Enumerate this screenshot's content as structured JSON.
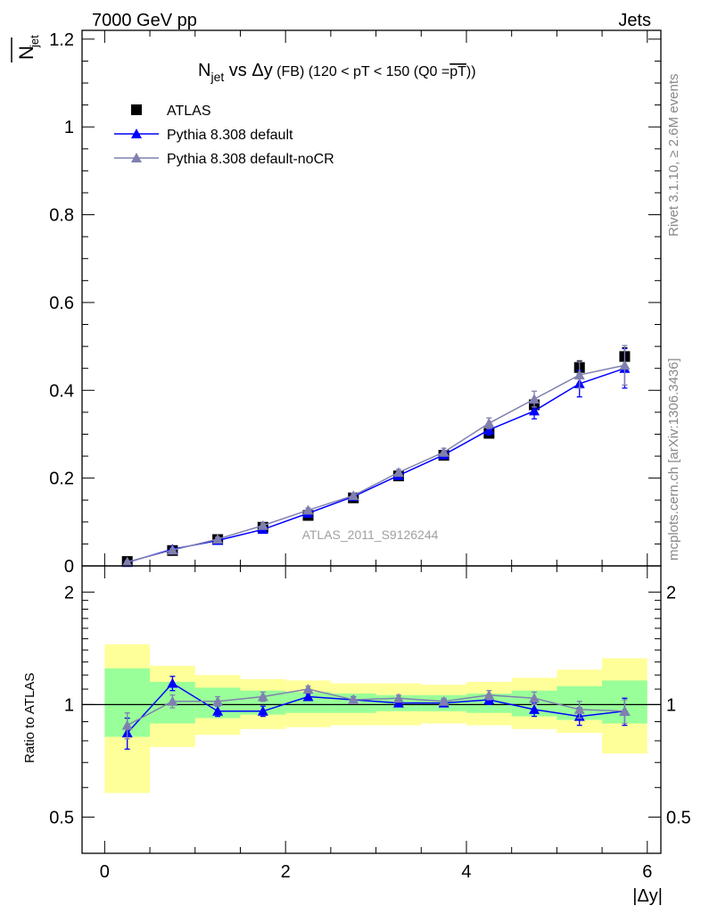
{
  "header": {
    "left": "7000 GeV pp",
    "right": "Jets"
  },
  "side_labels": {
    "rivet": "Rivet 3.1.10, ≥ 2.6M events",
    "mcplots": "mcplots.cern.ch [arXiv:1306.3436]"
  },
  "watermark": "ATLAS_2011_S9126244",
  "chart_data": [
    {
      "type": "scatter",
      "title_parts": {
        "n": "N",
        "jet_sub": "jet",
        "vs": " vs Δy",
        "fb": " (FB)",
        "range": " (120 < pT < 150 (Q0 =",
        "pt_bar": "pT",
        "close": "))"
      },
      "ylabel_main": "N",
      "ylabel_sub": "jet",
      "ylim": [
        0,
        1.22
      ],
      "yticks": [
        "0",
        "0.2",
        "0.4",
        "0.6",
        "0.8",
        "1",
        "1.2"
      ],
      "ytick_values": [
        0,
        0.2,
        0.4,
        0.6,
        0.8,
        1.0,
        1.2
      ],
      "xlim": [
        -0.25,
        6.15
      ],
      "x": [
        0.25,
        0.75,
        1.25,
        1.75,
        2.25,
        2.75,
        3.25,
        3.75,
        4.25,
        4.75,
        5.25,
        5.75
      ],
      "series": [
        {
          "name": "ATLAS",
          "color": "#000000",
          "marker": "square",
          "values": [
            0.01,
            0.035,
            0.06,
            0.088,
            0.115,
            0.155,
            0.205,
            0.252,
            0.302,
            0.367,
            0.452,
            0.477
          ],
          "errors": [
            0.003,
            0.003,
            0.004,
            0.005,
            0.006,
            0.007,
            0.008,
            0.009,
            0.01,
            0.012,
            0.015,
            0.02
          ]
        },
        {
          "name": "Pythia 8.308 default",
          "color": "#0000ff",
          "marker": "triangle",
          "values": [
            0.008,
            0.038,
            0.058,
            0.083,
            0.12,
            0.158,
            0.206,
            0.253,
            0.31,
            0.353,
            0.415,
            0.45
          ],
          "errors": [
            0.002,
            0.003,
            0.004,
            0.005,
            0.005,
            0.006,
            0.007,
            0.009,
            0.012,
            0.018,
            0.03,
            0.045
          ]
        },
        {
          "name": "Pythia 8.308 default-noCR",
          "color": "#8080b0",
          "marker": "triangle",
          "values": [
            0.009,
            0.036,
            0.061,
            0.092,
            0.127,
            0.16,
            0.213,
            0.259,
            0.325,
            0.38,
            0.435,
            0.457
          ],
          "errors": [
            0.002,
            0.003,
            0.004,
            0.005,
            0.005,
            0.006,
            0.007,
            0.009,
            0.012,
            0.018,
            0.03,
            0.045
          ]
        }
      ]
    },
    {
      "type": "scatter",
      "ylabel": "Ratio to ATLAS",
      "xlabel": "|Δy|",
      "ylim": [
        0.4,
        2.35
      ],
      "yscale": "log",
      "yticks": [
        "0.5",
        "1",
        "2"
      ],
      "ytick_values": [
        0.5,
        1,
        2
      ],
      "xticks": [
        "0",
        "2",
        "4",
        "6"
      ],
      "xtick_values": [
        0,
        2,
        4,
        6
      ],
      "bins": [
        [
          0,
          0.5
        ],
        [
          0.5,
          1
        ],
        [
          1,
          1.5
        ],
        [
          1.5,
          2
        ],
        [
          2,
          2.5
        ],
        [
          2.5,
          3
        ],
        [
          3,
          3.5
        ],
        [
          3.5,
          4
        ],
        [
          4,
          4.5
        ],
        [
          4.5,
          5
        ],
        [
          5,
          5.5
        ],
        [
          5.5,
          6
        ]
      ],
      "band_yellow": [
        [
          0.58,
          1.45
        ],
        [
          0.77,
          1.27
        ],
        [
          0.83,
          1.2
        ],
        [
          0.86,
          1.17
        ],
        [
          0.87,
          1.16
        ],
        [
          0.88,
          1.14
        ],
        [
          0.88,
          1.14
        ],
        [
          0.89,
          1.13
        ],
        [
          0.88,
          1.15
        ],
        [
          0.86,
          1.18
        ],
        [
          0.84,
          1.24
        ],
        [
          0.74,
          1.33
        ]
      ],
      "band_green": [
        [
          0.82,
          1.25
        ],
        [
          0.89,
          1.15
        ],
        [
          0.92,
          1.11
        ],
        [
          0.94,
          1.09
        ],
        [
          0.95,
          1.08
        ],
        [
          0.95,
          1.07
        ],
        [
          0.96,
          1.06
        ],
        [
          0.96,
          1.06
        ],
        [
          0.95,
          1.07
        ],
        [
          0.93,
          1.09
        ],
        [
          0.91,
          1.12
        ],
        [
          0.89,
          1.16
        ]
      ],
      "x": [
        0.25,
        0.75,
        1.25,
        1.75,
        2.25,
        2.75,
        3.25,
        3.75,
        4.25,
        4.75,
        5.25,
        5.75
      ],
      "series": [
        {
          "name": "Pythia 8.308 default",
          "color": "#0000ff",
          "values": [
            0.84,
            1.14,
            0.96,
            0.96,
            1.05,
            1.03,
            1.01,
            1.01,
            1.03,
            0.97,
            0.93,
            0.96
          ],
          "errors": [
            0.08,
            0.05,
            0.03,
            0.03,
            0.02,
            0.02,
            0.02,
            0.02,
            0.03,
            0.04,
            0.05,
            0.08
          ]
        },
        {
          "name": "Pythia 8.308 default-noCR",
          "color": "#8080b0",
          "values": [
            0.88,
            1.02,
            1.02,
            1.05,
            1.1,
            1.03,
            1.04,
            1.02,
            1.06,
            1.04,
            0.97,
            0.96
          ],
          "errors": [
            0.07,
            0.04,
            0.03,
            0.03,
            0.02,
            0.02,
            0.02,
            0.02,
            0.03,
            0.04,
            0.05,
            0.07
          ]
        }
      ]
    }
  ]
}
